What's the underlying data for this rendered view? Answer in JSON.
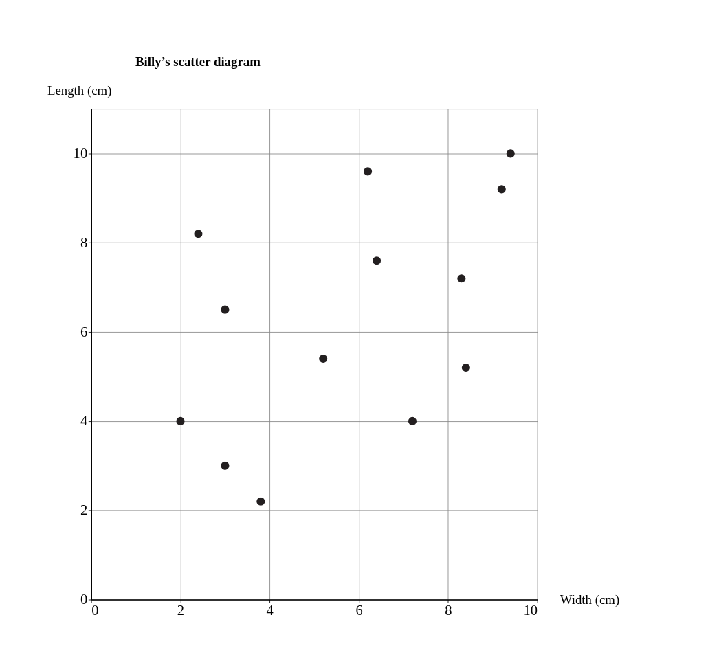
{
  "chart_data": {
    "type": "scatter",
    "title": "Billy’s scatter diagram",
    "xlabel": "Width (cm)",
    "ylabel": "Length (cm)",
    "x": [
      2.4,
      6.2,
      9.4,
      9.2,
      6.4,
      8.3,
      3,
      5.2,
      8.4,
      2,
      7.2,
      3,
      3.8
    ],
    "series": [
      {
        "color": "#231f20",
        "values": [
          8.2,
          9.6,
          10,
          9.2,
          7.6,
          7.2,
          6.5,
          5.4,
          5.2,
          4,
          4,
          3,
          2.2
        ]
      }
    ],
    "xlim": [
      0,
      10
    ],
    "ylim": [
      0,
      11
    ],
    "xticks": [
      0,
      2,
      4,
      6,
      8,
      10
    ],
    "yticks": [
      0,
      2,
      4,
      6,
      8,
      10
    ],
    "grid": true,
    "legend": false,
    "marker": "circle"
  }
}
